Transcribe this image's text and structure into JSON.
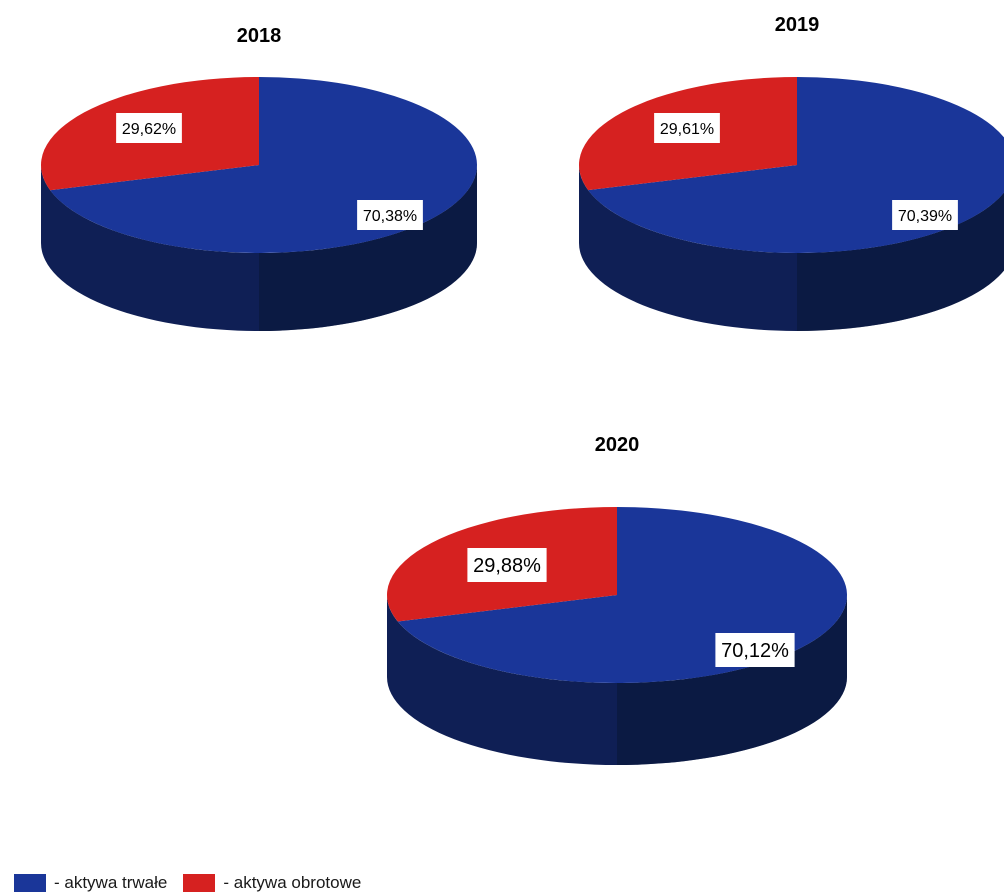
{
  "colors": {
    "series_a": "#1a3699",
    "series_a_dark": "#0f1f55",
    "series_b": "#d62120",
    "label_bg": "#ffffff"
  },
  "legend": {
    "items": [
      {
        "label": "- aktywa trwałe",
        "color": "#1a3699"
      },
      {
        "label": "- aktywa obrotowe",
        "color": "#d62120"
      }
    ],
    "placement": "bottom-left"
  },
  "chart_data": [
    {
      "type": "pie",
      "title": "2018",
      "categories": [
        "aktywa trwałe",
        "aktywa obrotowe"
      ],
      "values": [
        70.38,
        29.62
      ],
      "labels": [
        "70,38%",
        "29,62%"
      ]
    },
    {
      "type": "pie",
      "title": "2019",
      "categories": [
        "aktywa trwałe",
        "aktywa obrotowe"
      ],
      "values": [
        70.39,
        29.61
      ],
      "labels": [
        "70,39%",
        "29,61%"
      ]
    },
    {
      "type": "pie",
      "title": "2020",
      "categories": [
        "aktywa trwałe",
        "aktywa obrotowe"
      ],
      "values": [
        70.12,
        29.88
      ],
      "labels": [
        "70,12%",
        "29,88%"
      ]
    }
  ]
}
